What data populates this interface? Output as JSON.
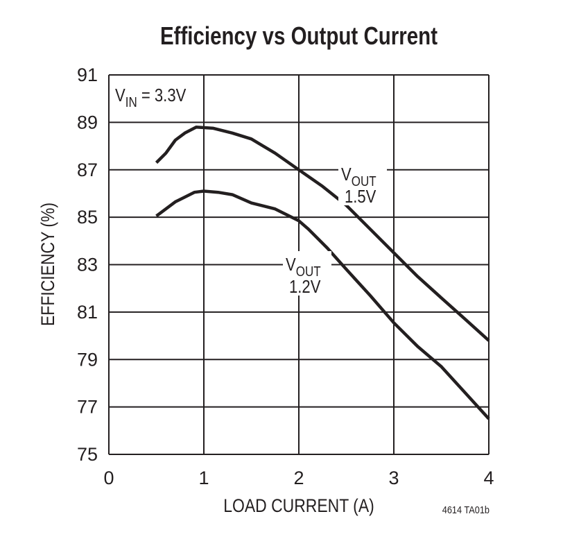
{
  "chart_data": {
    "type": "line",
    "title": "Efficiency vs Output Current",
    "xlabel": "LOAD CURRENT (A)",
    "ylabel": "EFFICIENCY (%)",
    "xlim": [
      0,
      4
    ],
    "ylim": [
      75,
      91
    ],
    "xticks": [
      "0",
      "1",
      "2",
      "3",
      "4"
    ],
    "yticks": [
      "75",
      "77",
      "79",
      "81",
      "83",
      "85",
      "87",
      "89",
      "91"
    ],
    "grid": true,
    "annotations": {
      "vin": {
        "main": "V",
        "sub": "IN",
        "rest": " = 3.3V"
      },
      "series_1": {
        "main": "V",
        "sub": "OUT",
        "value": "1.5V"
      },
      "series_2": {
        "main": "V",
        "sub": "OUT",
        "value": "1.2V"
      }
    },
    "footnote": "4614 TA01b",
    "series": [
      {
        "label": "VOUT 1.5V",
        "color": "#231f20",
        "x": [
          0.5,
          0.6,
          0.7,
          0.8,
          0.92,
          1.1,
          1.3,
          1.5,
          1.75,
          2.0,
          2.25,
          2.5,
          2.75,
          3.0,
          3.25,
          3.5,
          3.75,
          4.0
        ],
        "y": [
          87.3,
          87.7,
          88.25,
          88.55,
          88.8,
          88.75,
          88.55,
          88.3,
          87.7,
          87.0,
          86.3,
          85.5,
          84.5,
          83.5,
          82.5,
          81.6,
          80.7,
          79.8
        ]
      },
      {
        "label": "VOUT 1.2V",
        "color": "#231f20",
        "x": [
          0.5,
          0.6,
          0.7,
          0.8,
          0.9,
          1.0,
          1.15,
          1.3,
          1.5,
          1.75,
          2.0,
          2.1,
          2.3,
          2.5,
          2.75,
          3.0,
          3.25,
          3.5,
          3.75,
          4.0
        ],
        "y": [
          85.05,
          85.35,
          85.65,
          85.85,
          86.05,
          86.1,
          86.05,
          85.95,
          85.6,
          85.35,
          84.85,
          84.5,
          83.7,
          82.8,
          81.7,
          80.55,
          79.55,
          78.7,
          77.6,
          76.5
        ]
      }
    ]
  }
}
